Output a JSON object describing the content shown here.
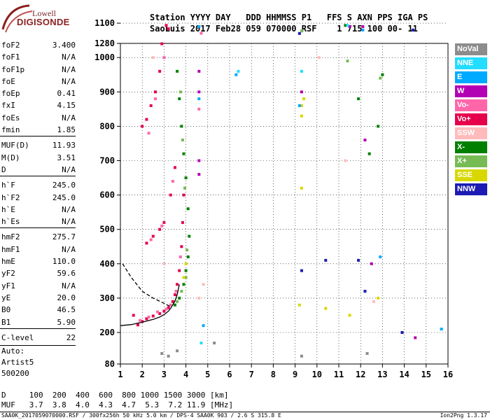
{
  "logo": {
    "line1": "Lowell",
    "line2": "DIGISONDE"
  },
  "header": {
    "line1": "Station YYYY DAY   DDD HHMMSS P1   FFS S AXN PPS IGA PS",
    "line2": "SaoLuis 2017 Feb28 059 070000 RSF    1 715 100 00- 11"
  },
  "params": [
    {
      "name": "foF2",
      "value": "3.400"
    },
    {
      "name": "foF1",
      "value": "N/A"
    },
    {
      "name": "foF1p",
      "value": "N/A"
    },
    {
      "name": "foE",
      "value": "N/A"
    },
    {
      "name": "foEp",
      "value": "0.41"
    },
    {
      "name": "fxI",
      "value": "4.15"
    },
    {
      "name": "foEs",
      "value": "N/A"
    },
    {
      "name": "fmin",
      "value": "1.85"
    },
    {
      "name": "MUF(D)",
      "value": "11.93"
    },
    {
      "name": "M(D)",
      "value": "3.51"
    },
    {
      "name": "D",
      "value": "N/A"
    },
    {
      "name": "h`F",
      "value": "245.0"
    },
    {
      "name": "h`F2",
      "value": "245.0"
    },
    {
      "name": "h`E",
      "value": "N/A"
    },
    {
      "name": "h`Es",
      "value": "N/A"
    },
    {
      "name": "hmF2",
      "value": "275.7"
    },
    {
      "name": "hmF1",
      "value": "N/A"
    },
    {
      "name": "hmE",
      "value": "110.0"
    },
    {
      "name": "yF2",
      "value": "59.6"
    },
    {
      "name": "yF1",
      "value": "N/A"
    },
    {
      "name": "yE",
      "value": "20.0"
    },
    {
      "name": "B0",
      "value": "46.5"
    },
    {
      "name": "B1",
      "value": "5.90"
    },
    {
      "name": "C-level",
      "value": "22"
    }
  ],
  "autoscaling": {
    "line1": "Auto:",
    "line2": "Artist5",
    "line3": "500200"
  },
  "legend": [
    {
      "label": "NoVal",
      "color": "#8c8c8c"
    },
    {
      "label": "NNE",
      "color": "#22ddff"
    },
    {
      "label": "E",
      "color": "#00aaff"
    },
    {
      "label": "W",
      "color": "#b400b4"
    },
    {
      "label": "Vo-",
      "color": "#ff66aa"
    },
    {
      "label": "Vo+",
      "color": "#e6004c"
    },
    {
      "label": "SSW",
      "color": "#ffbbbb"
    },
    {
      "label": "X-",
      "color": "#008000"
    },
    {
      "label": "X+",
      "color": "#77bb55"
    },
    {
      "label": "SSE",
      "color": "#d8d800"
    },
    {
      "label": "NNW",
      "color": "#1c1cb4"
    }
  ],
  "footer": {
    "d_line": "D     100  200  400  600  800 1000 1500 3000 [km]",
    "muf_line": "MUF   3.7  3.8  4.0  4.3  4.7  5.3  7.2 11.9 [MHz]",
    "source": "SAA0K_2017059070000.RSF / 300fx256h 50 kHz 5.0 km / DPS-4 SAA0K 903 / 2.6 S 315.8 E",
    "version": "Ion2Png 1.3.17"
  },
  "chart_data": {
    "type": "scatter",
    "xlabel": "",
    "ylabel": "",
    "xlim": [
      1,
      16
    ],
    "ylim": [
      80,
      1280
    ],
    "x_ticks": [
      "1",
      "2",
      "3",
      "4",
      "5",
      "6",
      "7",
      "8",
      "9",
      "10",
      "11",
      "12",
      "13",
      "14",
      "15",
      "16"
    ],
    "y_ticks": [
      "80",
      "200",
      "300",
      "400",
      "500",
      "600",
      "700",
      "800",
      "900",
      "1000",
      "1100",
      "1280"
    ],
    "grid": true,
    "legend_position": "right",
    "series": [
      {
        "name": "Vo+",
        "points": [
          [
            1.8,
            222
          ],
          [
            2.0,
            232
          ],
          [
            2.2,
            240
          ],
          [
            2.5,
            248
          ],
          [
            2.8,
            255
          ],
          [
            3.0,
            262
          ],
          [
            3.2,
            272
          ],
          [
            3.4,
            290
          ],
          [
            3.5,
            310
          ],
          [
            3.6,
            340
          ],
          [
            3.7,
            380
          ],
          [
            3.8,
            450
          ],
          [
            3.85,
            520
          ],
          [
            3.9,
            600
          ],
          [
            2.2,
            460
          ],
          [
            2.5,
            480
          ],
          [
            2.8,
            500
          ],
          [
            3.0,
            520
          ],
          [
            3.3,
            600
          ],
          [
            3.5,
            680
          ],
          [
            2.0,
            800
          ],
          [
            2.2,
            820
          ],
          [
            2.4,
            860
          ],
          [
            2.6,
            900
          ],
          [
            2.8,
            960
          ],
          [
            1.6,
            250
          ],
          [
            3.1,
            1120
          ],
          [
            3.2,
            1150
          ],
          [
            2.9,
            1040
          ]
        ]
      },
      {
        "name": "Vo-",
        "points": [
          [
            1.9,
            235
          ],
          [
            2.3,
            245
          ],
          [
            2.7,
            260
          ],
          [
            3.1,
            268
          ],
          [
            3.3,
            280
          ],
          [
            3.55,
            320
          ],
          [
            3.75,
            420
          ],
          [
            2.4,
            470
          ],
          [
            2.9,
            510
          ],
          [
            3.4,
            640
          ],
          [
            2.3,
            780
          ],
          [
            2.6,
            880
          ],
          [
            3.0,
            1000
          ],
          [
            4.7,
            1190
          ],
          [
            4.6,
            850
          ]
        ]
      },
      {
        "name": "X-",
        "points": [
          [
            3.5,
            280
          ],
          [
            3.7,
            300
          ],
          [
            3.9,
            340
          ],
          [
            4.0,
            380
          ],
          [
            4.1,
            420
          ],
          [
            4.15,
            480
          ],
          [
            4.1,
            560
          ],
          [
            4.0,
            650
          ],
          [
            3.9,
            720
          ],
          [
            3.8,
            800
          ],
          [
            3.7,
            880
          ],
          [
            3.6,
            960
          ],
          [
            12.4,
            720
          ],
          [
            12.8,
            800
          ],
          [
            11.9,
            880
          ],
          [
            13.0,
            950
          ],
          [
            11.3,
            1120
          ]
        ]
      },
      {
        "name": "X+",
        "points": [
          [
            3.6,
            290
          ],
          [
            3.8,
            320
          ],
          [
            4.0,
            360
          ],
          [
            4.05,
            440
          ],
          [
            3.95,
            620
          ],
          [
            3.85,
            760
          ],
          [
            3.75,
            900
          ],
          [
            9.3,
            1170
          ],
          [
            12.9,
            940
          ],
          [
            11.4,
            990
          ]
        ]
      },
      {
        "name": "SSE",
        "points": [
          [
            3.9,
            360
          ],
          [
            4.0,
            400
          ],
          [
            9.3,
            860
          ],
          [
            9.3,
            830
          ],
          [
            9.4,
            880
          ],
          [
            9.3,
            620
          ],
          [
            9.2,
            280
          ],
          [
            10.4,
            270
          ],
          [
            11.5,
            250
          ],
          [
            12.8,
            300
          ]
        ]
      },
      {
        "name": "W",
        "points": [
          [
            4.6,
            960
          ],
          [
            4.6,
            900
          ],
          [
            4.6,
            700
          ],
          [
            4.6,
            660
          ],
          [
            9.3,
            900
          ],
          [
            12.2,
            760
          ],
          [
            12.1,
            1090
          ],
          [
            11.5,
            1130
          ],
          [
            14.5,
            180
          ],
          [
            12.5,
            400
          ]
        ]
      },
      {
        "name": "E",
        "points": [
          [
            4.6,
            1130
          ],
          [
            4.6,
            880
          ],
          [
            4.8,
            220
          ],
          [
            6.3,
            950
          ],
          [
            9.2,
            860
          ],
          [
            12.1,
            1080
          ],
          [
            12.9,
            420
          ],
          [
            15.7,
            210
          ]
        ]
      },
      {
        "name": "NNW",
        "points": [
          [
            9.2,
            1070
          ],
          [
            10.4,
            410
          ],
          [
            11.9,
            410
          ],
          [
            12.2,
            320
          ],
          [
            13.9,
            200
          ],
          [
            14.4,
            1080
          ],
          [
            9.3,
            380
          ]
        ]
      },
      {
        "name": "SSW",
        "points": [
          [
            3.0,
            400
          ],
          [
            4.6,
            300
          ],
          [
            4.8,
            340
          ],
          [
            2.5,
            1000
          ],
          [
            10.1,
            1000
          ],
          [
            11.3,
            700
          ],
          [
            12.6,
            290
          ]
        ]
      },
      {
        "name": "NNE",
        "points": [
          [
            4.7,
            160
          ],
          [
            6.4,
            960
          ],
          [
            9.3,
            960
          ],
          [
            11.4,
            1120
          ]
        ]
      },
      {
        "name": "NoVal",
        "points": [
          [
            2.9,
            120
          ],
          [
            3.2,
            110
          ],
          [
            3.6,
            130
          ],
          [
            5.3,
            160
          ],
          [
            9.3,
            110
          ],
          [
            12.3,
            120
          ]
        ]
      }
    ],
    "traces": [
      {
        "name": "virtual_height_trace",
        "x": [
          1.0,
          1.5,
          2.0,
          2.5,
          2.8,
          3.0,
          3.2,
          3.35,
          3.5,
          3.6,
          3.7
        ],
        "y": [
          220,
          223,
          230,
          238,
          245,
          252,
          262,
          275,
          292,
          310,
          340
        ]
      },
      {
        "name": "profile_dashed",
        "x": [
          1.1,
          1.5,
          2.0,
          2.5,
          3.0,
          3.3
        ],
        "y": [
          400,
          360,
          320,
          300,
          285,
          275
        ]
      }
    ]
  }
}
